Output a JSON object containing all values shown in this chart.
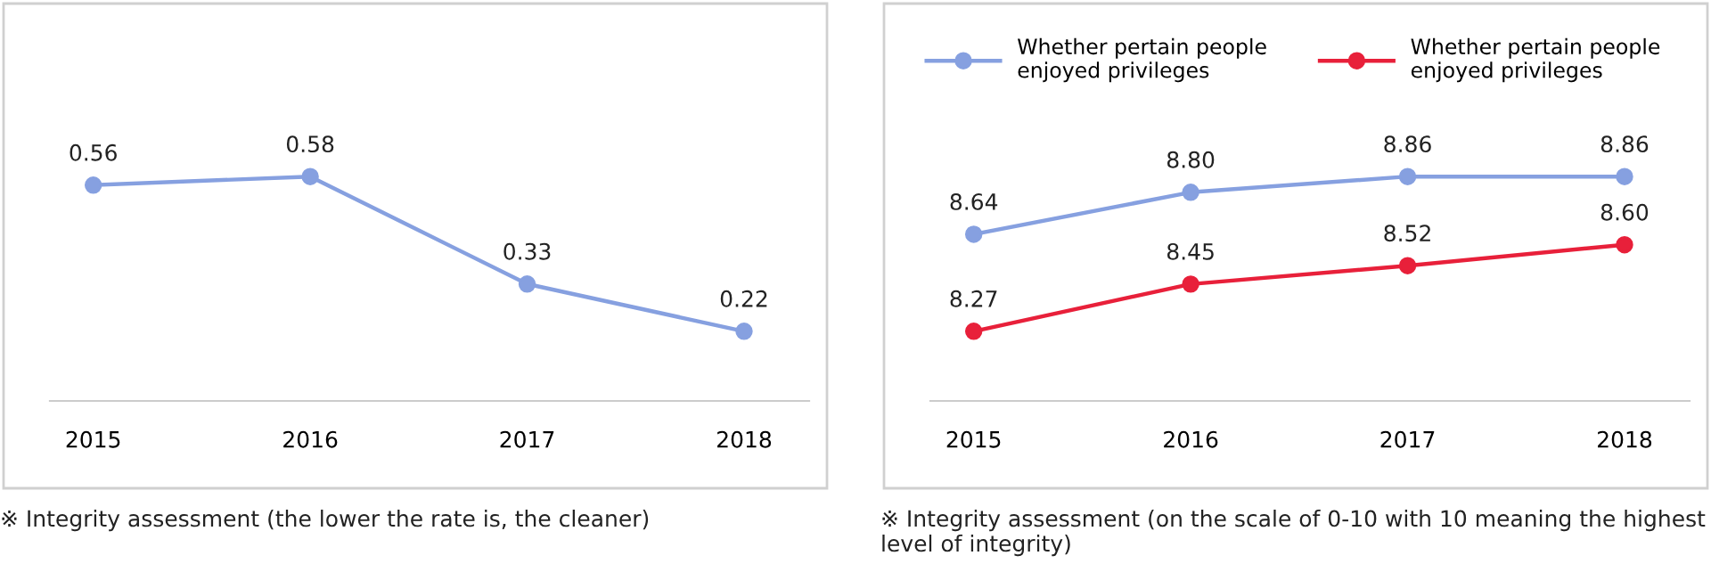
{
  "chart_data": [
    {
      "type": "line",
      "categories": [
        "2015",
        "2016",
        "2017",
        "2018"
      ],
      "marker": "circle",
      "legend": false,
      "grid": false,
      "tick_labels": "x",
      "series": [
        {
          "color": "#86a0e0",
          "values": [
            0.56,
            0.58,
            0.33,
            0.22
          ],
          "value_labels": [
            "0.56",
            "0.58",
            "0.33",
            "0.22"
          ]
        }
      ],
      "annotations": [
        "※ Integrity assessment (the lower the rate is, the cleaner)"
      ]
    },
    {
      "type": "line",
      "categories": [
        "2015",
        "2016",
        "2017",
        "2018"
      ],
      "marker": "circle",
      "legend": "top left",
      "grid": false,
      "tick_labels": "x",
      "series": [
        {
          "name": "Whether pertain people\nenjoyed privileges",
          "color": "#86a0e0",
          "values": [
            8.64,
            8.8,
            8.86,
            8.86
          ],
          "value_labels": [
            "8.64",
            "8.80",
            "8.86",
            "8.86"
          ]
        },
        {
          "name": "Whether pertain people\nenjoyed privileges",
          "color": "#e8203a",
          "values": [
            8.27,
            8.45,
            8.52,
            8.6
          ],
          "value_labels": [
            "8.27",
            "8.45",
            "8.52",
            "8.60"
          ]
        }
      ],
      "annotations": [
        "※ Integrity assessment (on the scale of 0-10 with 10 meaning the highest level of integrity)"
      ]
    }
  ]
}
